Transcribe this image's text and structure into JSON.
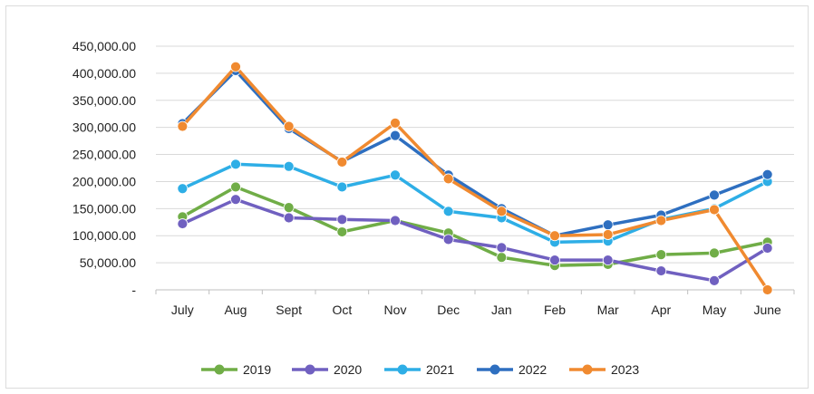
{
  "chart_data": {
    "type": "line",
    "categories": [
      "July",
      "Aug",
      "Sept",
      "Oct",
      "Nov",
      "Dec",
      "Jan",
      "Feb",
      "Mar",
      "Apr",
      "May",
      "June"
    ],
    "y_tick_labels": [
      "-",
      "50,000.00",
      "100,000.00",
      "150,000.00",
      "200,000.00",
      "250,000.00",
      "300,000.00",
      "350,000.00",
      "400,000.00",
      "450,000.00"
    ],
    "ylim": [
      0,
      450000
    ],
    "grid": true,
    "legend_position": "bottom",
    "series": [
      {
        "name": "2019",
        "color": "#70ad47",
        "values": [
          135000,
          190000,
          152000,
          107000,
          128000,
          105000,
          60000,
          45000,
          47000,
          65000,
          68000,
          88000
        ]
      },
      {
        "name": "2020",
        "color": "#7060c0",
        "values": [
          122000,
          167000,
          133000,
          130000,
          128000,
          93000,
          78000,
          55000,
          55000,
          35000,
          17000,
          77000
        ]
      },
      {
        "name": "2021",
        "color": "#2eaee6",
        "values": [
          187000,
          232000,
          228000,
          190000,
          212000,
          145000,
          133000,
          88000,
          90000,
          130000,
          150000,
          200000
        ]
      },
      {
        "name": "2022",
        "color": "#2e6fc0",
        "values": [
          307000,
          405000,
          298000,
          237000,
          285000,
          212000,
          150000,
          100000,
          120000,
          138000,
          175000,
          213000
        ]
      },
      {
        "name": "2023",
        "color": "#f08a30",
        "values": [
          302000,
          412000,
          302000,
          236000,
          308000,
          205000,
          145000,
          100000,
          102000,
          128000,
          148000,
          0
        ]
      }
    ]
  }
}
